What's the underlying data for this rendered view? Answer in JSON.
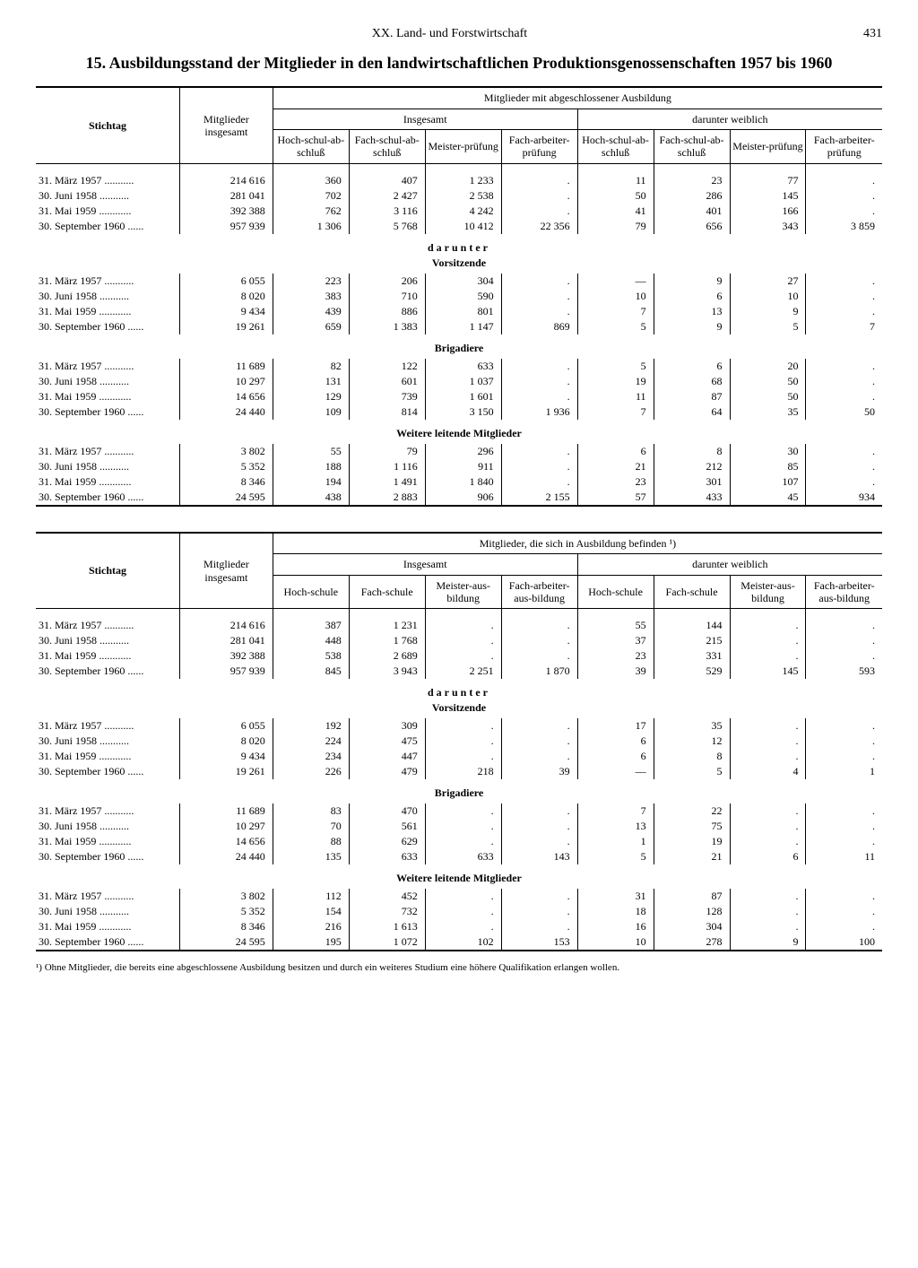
{
  "page": {
    "section": "XX. Land- und Forstwirtschaft",
    "number": "431"
  },
  "title": "15. Ausbildungsstand der Mitglieder in den landwirtschaftlichen Produktionsgenossenschaften 1957 bis 1960",
  "headers": {
    "stichtag": "Stichtag",
    "mitglieder_insgesamt": "Mitglieder insgesamt",
    "completed_group": "Mitglieder mit abgeschlossener Ausbildung",
    "training_group": "Mitglieder, die sich in Ausbildung befinden ¹)",
    "insgesamt": "Insgesamt",
    "darunter_weiblich": "darunter weiblich",
    "hoch_abschluss": "Hoch-schul-ab-schluß",
    "fach_abschluss": "Fach-schul-ab-schluß",
    "meister_pruefung": "Meister-prüfung",
    "facharbeiter_pruefung": "Fach-arbeiter-prüfung",
    "hochschule": "Hoch-schule",
    "fachschule": "Fach-schule",
    "meister_ausbildung": "Meister-aus-bildung",
    "facharbeiter_ausbildung": "Fach-arbeiter-aus-bildung",
    "darunter": "darunter",
    "vorsitzende": "Vorsitzende",
    "brigadiere": "Brigadiere",
    "weitere": "Weitere leitende Mitglieder"
  },
  "dates": [
    "31. März 1957",
    "30. Juni 1958",
    "31. Mai 1959",
    "30. September 1960"
  ],
  "table1": {
    "main": [
      [
        "214 616",
        "360",
        "407",
        "1 233",
        ".",
        "11",
        "23",
        "77",
        "."
      ],
      [
        "281 041",
        "702",
        "2 427",
        "2 538",
        ".",
        "50",
        "286",
        "145",
        "."
      ],
      [
        "392 388",
        "762",
        "3 116",
        "4 242",
        ".",
        "41",
        "401",
        "166",
        "."
      ],
      [
        "957 939",
        "1 306",
        "5 768",
        "10 412",
        "22 356",
        "79",
        "656",
        "343",
        "3 859"
      ]
    ],
    "vorsitzende": [
      [
        "6 055",
        "223",
        "206",
        "304",
        ".",
        "—",
        "9",
        "27",
        "."
      ],
      [
        "8 020",
        "383",
        "710",
        "590",
        ".",
        "10",
        "6",
        "10",
        "."
      ],
      [
        "9 434",
        "439",
        "886",
        "801",
        ".",
        "7",
        "13",
        "9",
        "."
      ],
      [
        "19 261",
        "659",
        "1 383",
        "1 147",
        "869",
        "5",
        "9",
        "5",
        "7"
      ]
    ],
    "brigadiere": [
      [
        "11 689",
        "82",
        "122",
        "633",
        ".",
        "5",
        "6",
        "20",
        "."
      ],
      [
        "10 297",
        "131",
        "601",
        "1 037",
        ".",
        "19",
        "68",
        "50",
        "."
      ],
      [
        "14 656",
        "129",
        "739",
        "1 601",
        ".",
        "11",
        "87",
        "50",
        "."
      ],
      [
        "24 440",
        "109",
        "814",
        "3 150",
        "1 936",
        "7",
        "64",
        "35",
        "50"
      ]
    ],
    "weitere": [
      [
        "3 802",
        "55",
        "79",
        "296",
        ".",
        "6",
        "8",
        "30",
        "."
      ],
      [
        "5 352",
        "188",
        "1 116",
        "911",
        ".",
        "21",
        "212",
        "85",
        "."
      ],
      [
        "8 346",
        "194",
        "1 491",
        "1 840",
        ".",
        "23",
        "301",
        "107",
        "."
      ],
      [
        "24 595",
        "438",
        "2 883",
        "906",
        "2 155",
        "57",
        "433",
        "45",
        "934"
      ]
    ]
  },
  "table2": {
    "main": [
      [
        "214 616",
        "387",
        "1 231",
        ".",
        ".",
        "55",
        "144",
        ".",
        "."
      ],
      [
        "281 041",
        "448",
        "1 768",
        ".",
        ".",
        "37",
        "215",
        ".",
        "."
      ],
      [
        "392 388",
        "538",
        "2 689",
        ".",
        ".",
        "23",
        "331",
        ".",
        "."
      ],
      [
        "957 939",
        "845",
        "3 943",
        "2 251",
        "1 870",
        "39",
        "529",
        "145",
        "593"
      ]
    ],
    "vorsitzende": [
      [
        "6 055",
        "192",
        "309",
        ".",
        ".",
        "17",
        "35",
        ".",
        "."
      ],
      [
        "8 020",
        "224",
        "475",
        ".",
        ".",
        "6",
        "12",
        ".",
        "."
      ],
      [
        "9 434",
        "234",
        "447",
        ".",
        ".",
        "6",
        "8",
        ".",
        "."
      ],
      [
        "19 261",
        "226",
        "479",
        "218",
        "39",
        "—",
        "5",
        "4",
        "1"
      ]
    ],
    "brigadiere": [
      [
        "11 689",
        "83",
        "470",
        ".",
        ".",
        "7",
        "22",
        ".",
        "."
      ],
      [
        "10 297",
        "70",
        "561",
        ".",
        ".",
        "13",
        "75",
        ".",
        "."
      ],
      [
        "14 656",
        "88",
        "629",
        ".",
        ".",
        "1",
        "19",
        ".",
        "."
      ],
      [
        "24 440",
        "135",
        "633",
        "633",
        "143",
        "5",
        "21",
        "6",
        "11"
      ]
    ],
    "weitere": [
      [
        "3 802",
        "112",
        "452",
        ".",
        ".",
        "31",
        "87",
        ".",
        "."
      ],
      [
        "5 352",
        "154",
        "732",
        ".",
        ".",
        "18",
        "128",
        ".",
        "."
      ],
      [
        "8 346",
        "216",
        "1 613",
        ".",
        ".",
        "16",
        "304",
        ".",
        "."
      ],
      [
        "24 595",
        "195",
        "1 072",
        "102",
        "153",
        "10",
        "278",
        "9",
        "100"
      ]
    ]
  },
  "footnote": "¹) Ohne Mitglieder, die bereits eine abgeschlossene Ausbildung besitzen und durch ein weiteres Studium eine höhere Qualifikation erlangen wollen."
}
